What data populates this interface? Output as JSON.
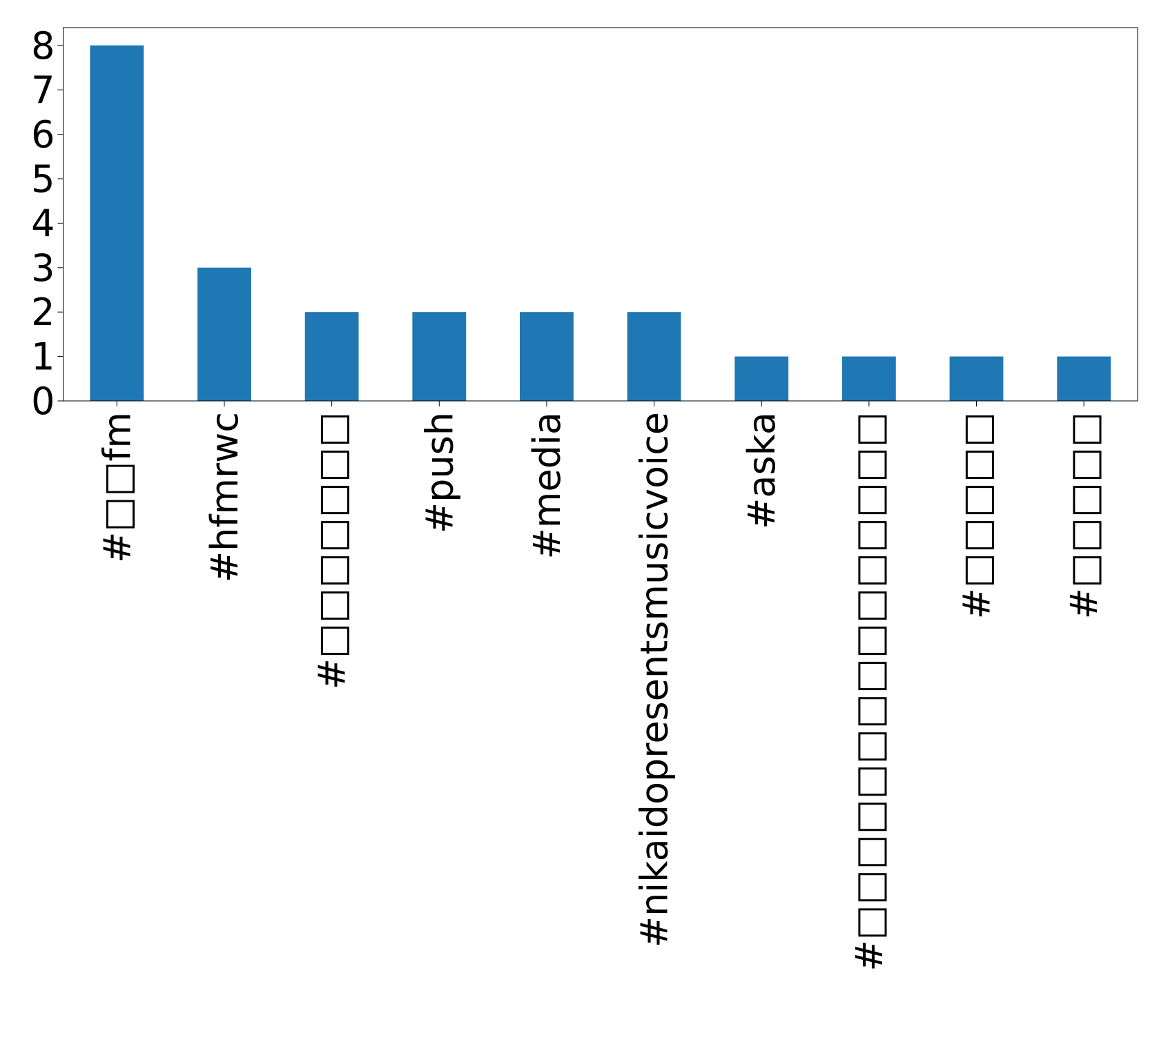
{
  "chart_data": {
    "type": "bar",
    "categories": [
      "#□□fm",
      "#hfmrwc",
      "#□□□□□□□",
      "#push",
      "#media",
      "#nikaidopresentsmusicvoice",
      "#aska",
      "#□□□□□□□□□□□□□□□",
      "#□□□□□",
      "#□□□□□"
    ],
    "values": [
      8,
      3,
      2,
      2,
      2,
      2,
      1,
      1,
      1,
      1
    ],
    "color": "#1f77b4",
    "ylim": [
      0,
      8.4
    ],
    "yticks": [
      0,
      1,
      2,
      3,
      4,
      5,
      6,
      7,
      8
    ],
    "grid": false
  }
}
